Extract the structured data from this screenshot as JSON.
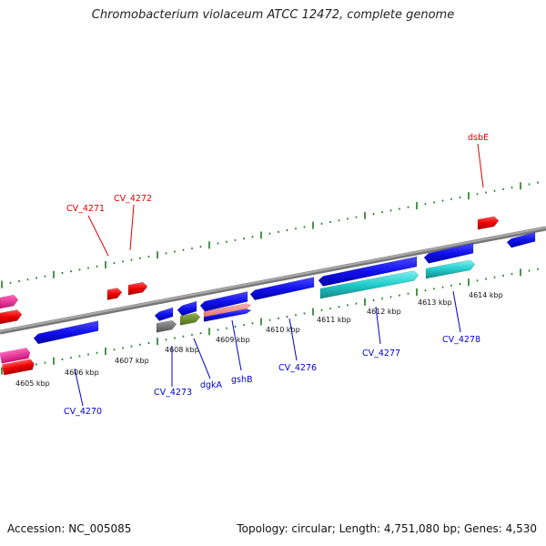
{
  "title": "Chromobacterium violaceum ATCC 12472, complete genome",
  "footer": {
    "accession": "Accession: NC_005085",
    "topology": "Topology: circular; Length: 4,751,080 bp; Genes: 4,530"
  },
  "colors": {
    "backbone": "#8c8c8c",
    "tick": "#1f7a1f",
    "label_forward": "#dd0000",
    "label_reverse": "#0000cc"
  },
  "kbp_labels": [
    "4605 kbp",
    "4606 kbp",
    "4607 kbp",
    "4608 kbp",
    "4609 kbp",
    "4610 kbp",
    "4611 kbp",
    "4612 kbp",
    "4613 kbp",
    "4614 kbp"
  ],
  "forward_labels": [
    "CV_4271",
    "CV_4272",
    "dsbE"
  ],
  "reverse_labels": [
    "CV_4270",
    "CV_4273",
    "dgkA",
    "gshB",
    "CV_4276",
    "CV_4277",
    "CV_4278"
  ]
}
